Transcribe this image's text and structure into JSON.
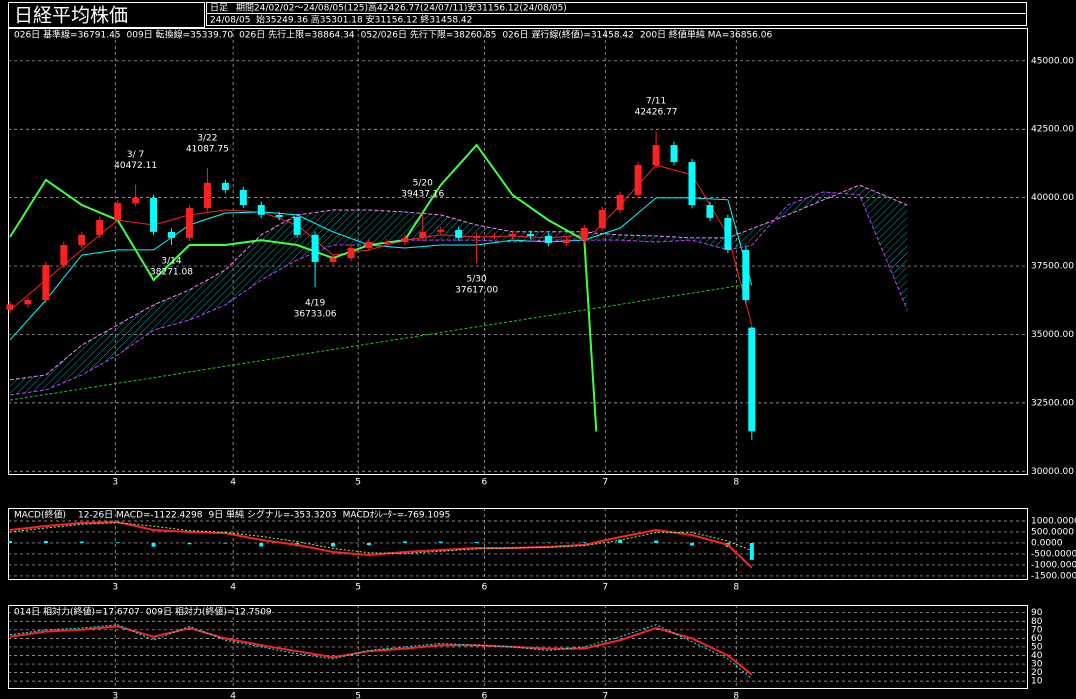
{
  "header": {
    "title": "日経平均株価",
    "period_label": "日足",
    "period": "期間24/02/02〜24/08/05(125)高42426.77(24/07/11)安31156.12(24/08/05)",
    "date": "24/08/05",
    "ohlc": "始35249.36 高35301.18 安31156.12 終31458.42"
  },
  "chart_data": [
    {
      "type": "candlestick",
      "xlim": [
        -0.33,
        170
      ],
      "xticks": [
        {
          "value": 17.6,
          "label": "3"
        },
        {
          "value": 37.3,
          "label": "4"
        },
        {
          "value": 58.2,
          "label": "5"
        },
        {
          "value": 79.3,
          "label": "6"
        },
        {
          "value": 99.5,
          "label": "7"
        },
        {
          "value": 121.4,
          "label": "8"
        }
      ],
      "ylim": [
        29900,
        46200
      ],
      "yticks": [
        {
          "value": 30000,
          "label": "30000.00"
        },
        {
          "value": 32500,
          "label": "32500.00"
        },
        {
          "value": 35000,
          "label": "35000.00"
        },
        {
          "value": 37500,
          "label": "37500.00"
        },
        {
          "value": 40000,
          "label": "40000.00"
        },
        {
          "value": 42500,
          "label": "42500.00"
        },
        {
          "value": 45000,
          "label": "45000.00"
        }
      ],
      "grid": true,
      "candles": {
        "up_color": "#ff2020",
        "down_color": "#00ffff",
        "x": [
          0,
          3,
          6,
          9,
          12,
          15,
          18,
          21,
          24,
          27,
          30,
          33,
          36,
          39,
          42,
          45,
          48,
          51,
          54,
          57,
          60,
          63,
          66,
          69,
          72,
          75,
          78,
          81,
          84,
          87,
          90,
          93,
          96,
          99,
          102,
          105,
          108,
          111,
          114,
          117,
          120,
          123,
          124
        ],
        "open": [
          35900,
          36100,
          36260,
          37540,
          38270,
          38640,
          39180,
          39800,
          39990,
          38750,
          38530,
          39620,
          40540,
          40280,
          39730,
          39370,
          39290,
          38640,
          37650,
          37790,
          38160,
          38380,
          38380,
          38530,
          38750,
          38820,
          38530,
          38600,
          38600,
          38670,
          38600,
          38340,
          38450,
          38890,
          39550,
          40100,
          41190,
          41920,
          41300,
          39730,
          39260,
          38090,
          35249.36
        ],
        "high": [
          36220,
          36380,
          37660,
          38390,
          38760,
          39300,
          39920,
          40472.11,
          40110,
          38870,
          39740,
          41087.75,
          40660,
          40400,
          39850,
          39490,
          39410,
          38760,
          37910,
          38280,
          38500,
          38500,
          38650,
          39437.16,
          38940,
          38940,
          38720,
          38720,
          38790,
          38790,
          38720,
          38570,
          39010,
          39670,
          40220,
          41310,
          42426.77,
          42040,
          41420,
          39850,
          39380,
          38210,
          35301.18
        ],
        "low": [
          35780,
          35980,
          36140,
          37420,
          38150,
          38520,
          39060,
          39680,
          38630,
          38271.08,
          38410,
          39500,
          40160,
          39610,
          39250,
          39170,
          38520,
          36733.06,
          37530,
          37670,
          38040,
          38260,
          38260,
          38410,
          38630,
          38410,
          37617,
          38480,
          38480,
          38480,
          38220,
          38220,
          38330,
          38770,
          39430,
          39980,
          41070,
          41180,
          39610,
          39140,
          37970,
          36140,
          31156.12
        ],
        "close": [
          36100,
          36260,
          37540,
          38270,
          38640,
          39180,
          39800,
          39990,
          38750,
          38530,
          39620,
          40540,
          40280,
          39730,
          39370,
          39290,
          38640,
          37650,
          37790,
          38160,
          38380,
          38380,
          38530,
          38750,
          38820,
          38530,
          38600,
          38600,
          38670,
          38600,
          38340,
          38450,
          38890,
          39550,
          40100,
          41190,
          41920,
          41300,
          39730,
          39260,
          38090,
          36260,
          31458.42
        ]
      },
      "line_x": [
        0,
        6,
        12,
        18,
        24,
        30,
        36,
        42,
        48,
        54,
        60,
        66,
        72,
        78,
        84,
        90,
        96,
        98,
        102,
        108,
        114,
        120,
        124,
        130,
        136,
        142,
        150
      ],
      "series": [
        {
          "name": "026日 基準線=36791.45",
          "color": "#00ffff",
          "dash": "none",
          "values": [
            34800,
            36260,
            37900,
            38090,
            38090,
            39000,
            39440,
            39480,
            39370,
            38750,
            38270,
            38160,
            38270,
            38270,
            38450,
            38380,
            38450,
            38600,
            38890,
            39990,
            39990,
            39920,
            36791,
            null,
            null,
            null,
            null
          ]
        },
        {
          "name": "009日 転換線=35339.70",
          "color": "#ff2020",
          "dash": "none",
          "values": [
            35890,
            36990,
            38090,
            39180,
            39000,
            39370,
            39550,
            39480,
            39000,
            37900,
            38090,
            38450,
            38640,
            38560,
            38600,
            38530,
            38640,
            38800,
            39730,
            41190,
            40830,
            38640,
            35340,
            null,
            null,
            null,
            null
          ]
        },
        {
          "name": "026日 先行上限=38864.34",
          "color": "#ff80ff",
          "dash": "4 2",
          "values": [
            33340,
            33520,
            34610,
            35350,
            36080,
            36630,
            37360,
            38640,
            39370,
            39550,
            39550,
            39480,
            39370,
            39000,
            38750,
            38750,
            38750,
            38700,
            38640,
            38600,
            38530,
            38530,
            38864,
            39370,
            39920,
            40460,
            39730
          ]
        },
        {
          "name": "052/026日 先行下限=38260.85",
          "color": "#c040ff",
          "dash": "4 2",
          "values": [
            32790,
            32970,
            33520,
            34250,
            35160,
            35530,
            36080,
            36990,
            37720,
            38270,
            38270,
            38450,
            38450,
            38450,
            38380,
            38450,
            38450,
            38450,
            38450,
            38380,
            38450,
            38090,
            38261,
            39730,
            40210,
            40100,
            35890
          ]
        },
        {
          "name": "026日 遅行線(終値)=31458.42",
          "color": "#40ff40",
          "dash": "none",
          "width": 2,
          "values": [
            38560,
            40650,
            39730,
            39180,
            36990,
            38270,
            38270,
            38450,
            38270,
            37790,
            38270,
            38450,
            40460,
            41920,
            40100,
            39180,
            38450,
            31458.42,
            null,
            null,
            null,
            null,
            null,
            null,
            null,
            null,
            null
          ]
        },
        {
          "name": "200日 終値単純 MA=36856.06",
          "color": "#20c020",
          "dash": "3 2",
          "values": [
            32600,
            32810,
            33010,
            33220,
            33420,
            33630,
            33840,
            34040,
            34250,
            34450,
            34660,
            34860,
            35070,
            35280,
            35480,
            35690,
            35890,
            35960,
            36100,
            36310,
            36510,
            36720,
            36856.06,
            null,
            null,
            null,
            null
          ]
        }
      ],
      "cloud": {
        "between": [
          2,
          3
        ],
        "color": "#00d0d0"
      },
      "annotations": {
        "high_color": "#ff4040",
        "low_color": "#00ffff",
        "items": [
          {
            "x": 21,
            "date": "3/ 7",
            "value": 40472.11,
            "kind": "high"
          },
          {
            "x": 27,
            "date": "3/14",
            "value": 38271.08,
            "kind": "low"
          },
          {
            "x": 33,
            "date": "3/22",
            "value": 41087.75,
            "kind": "high"
          },
          {
            "x": 51,
            "date": "4/19",
            "value": 36733.06,
            "kind": "low"
          },
          {
            "x": 69,
            "date": "5/20",
            "value": 39437.16,
            "kind": "high"
          },
          {
            "x": 78,
            "date": "5/30",
            "value": 37617,
            "value_label": "37617.00",
            "kind": "low"
          },
          {
            "x": 108,
            "date": "7/11",
            "value": 42426.77,
            "kind": "high"
          }
        ]
      }
    },
    {
      "type": "line",
      "title": "MACD(終値)",
      "xlim": [
        -0.33,
        170
      ],
      "xticks": [
        {
          "value": 17.6,
          "label": "3"
        },
        {
          "value": 37.3,
          "label": "4"
        },
        {
          "value": 58.2,
          "label": "5"
        },
        {
          "value": 79.3,
          "label": "6"
        },
        {
          "value": 99.5,
          "label": "7"
        },
        {
          "value": 121.4,
          "label": "8"
        }
      ],
      "ylim": [
        -1640,
        1590
      ],
      "yticks": [
        {
          "value": 1000,
          "label": "1000.0000"
        },
        {
          "value": 500,
          "label": "500.0000"
        },
        {
          "value": 0,
          "label": "0.0000"
        },
        {
          "value": -500,
          "label": "-500.0000"
        },
        {
          "value": -1000,
          "label": "-1000.0000"
        },
        {
          "value": -1500,
          "label": "-1500.0000"
        }
      ],
      "grid": true,
      "x": [
        0,
        6,
        12,
        18,
        24,
        30,
        36,
        42,
        48,
        54,
        60,
        66,
        72,
        78,
        84,
        90,
        96,
        102,
        108,
        114,
        120,
        124
      ],
      "series": [
        {
          "name": "12-26日 MACD=-1122.4298",
          "color": "#ff2020",
          "style": "line",
          "dash": "none",
          "width": 2,
          "values": [
            590,
            770,
            910,
            950,
            590,
            500,
            450,
            140,
            -90,
            -410,
            -550,
            -410,
            -320,
            -230,
            -230,
            -180,
            -90,
            270,
            590,
            360,
            -90,
            -1122.4298
          ]
        },
        {
          "name": "9日 単純 シグナル=-353.3203",
          "color": "#80ff80",
          "style": "line",
          "dash": "2 2",
          "width": 1,
          "values": [
            500,
            680,
            850,
            920,
            760,
            560,
            480,
            300,
            60,
            -250,
            -450,
            -480,
            -380,
            -270,
            -230,
            -200,
            -120,
            120,
            480,
            480,
            90,
            -353.3203
          ]
        },
        {
          "name": "MACDｵｼﾚｰﾀｰ=-769.1095",
          "color": "#00ffff",
          "style": "bar",
          "values": [
            90,
            90,
            60,
            30,
            -170,
            -60,
            -30,
            -160,
            -150,
            -160,
            -100,
            70,
            60,
            40,
            0,
            20,
            30,
            150,
            110,
            -120,
            -180,
            -769.1095
          ]
        }
      ]
    },
    {
      "type": "line",
      "xlim": [
        -0.33,
        170
      ],
      "xticks": [
        {
          "value": 17.6,
          "label": "3"
        },
        {
          "value": 37.3,
          "label": "4"
        },
        {
          "value": 58.2,
          "label": "5"
        },
        {
          "value": 79.3,
          "label": "6"
        },
        {
          "value": 99.5,
          "label": "7"
        },
        {
          "value": 121.4,
          "label": "8"
        }
      ],
      "ylim": [
        2,
        99
      ],
      "yticks": [
        90,
        80,
        70,
        60,
        50,
        40,
        30,
        20,
        10
      ],
      "grid": true,
      "x": [
        0,
        6,
        12,
        18,
        24,
        30,
        36,
        42,
        48,
        54,
        60,
        66,
        72,
        78,
        84,
        90,
        96,
        102,
        108,
        114,
        120,
        124
      ],
      "series": [
        {
          "name": "014日 相対力(終値)=17.6707",
          "color": "#ff2020",
          "style": "line",
          "dash": "none",
          "width": 2,
          "values": [
            62,
            68,
            70,
            74,
            62,
            72,
            60,
            52,
            45,
            38,
            45,
            48,
            52,
            52,
            50,
            48,
            48,
            58,
            72,
            60,
            40,
            17.6707
          ]
        },
        {
          "name": "009日 相対力(終値)=12.7509",
          "color": "#00ffff",
          "style": "line",
          "dash": "2 2",
          "width": 1,
          "values": [
            64,
            70,
            72,
            76,
            58,
            74,
            58,
            50,
            42,
            36,
            46,
            50,
            54,
            52,
            50,
            46,
            50,
            62,
            76,
            56,
            36,
            12.7509
          ]
        }
      ]
    }
  ]
}
